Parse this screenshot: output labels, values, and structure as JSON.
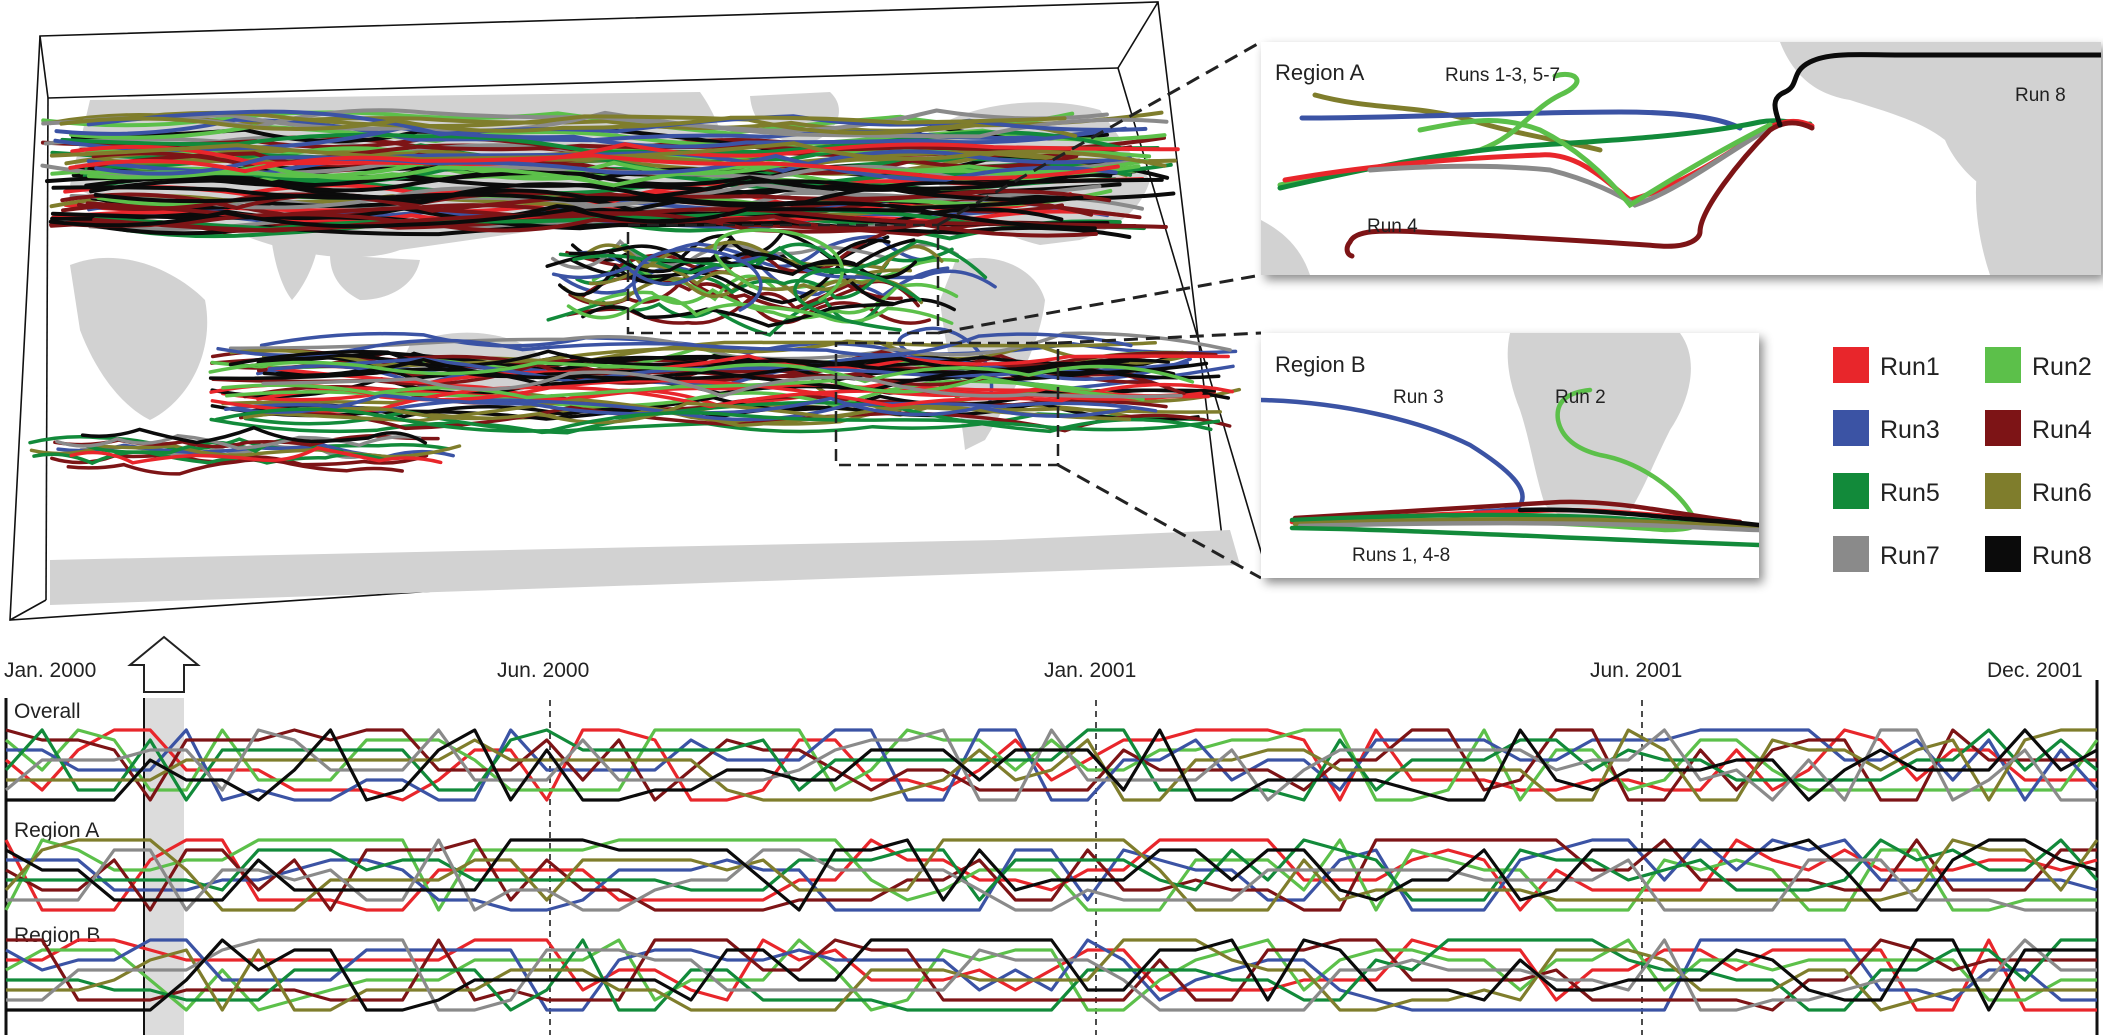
{
  "colors": {
    "Run1": "#e8262b",
    "Run2": "#5cc04a",
    "Run3": "#3b53a4",
    "Run4": "#7d1416",
    "Run5": "#128a3a",
    "Run6": "#7f7d2c",
    "Run7": "#8a8a8a",
    "Run8": "#0b0b0b",
    "land": "#d2d2d2",
    "highlight": "#dcdcdc"
  },
  "region_a": {
    "title": "Region A",
    "label_runs": "Runs 1-3, 5-7",
    "label_run4": "Run 4",
    "label_run8": "Run 8"
  },
  "region_b": {
    "title": "Region B",
    "label_run3": "Run 3",
    "label_run2": "Run 2",
    "label_runs": "Runs 1, 4-8"
  },
  "legend": [
    {
      "name": "Run1",
      "color": "#e8262b"
    },
    {
      "name": "Run2",
      "color": "#5cc04a"
    },
    {
      "name": "Run3",
      "color": "#3b53a4"
    },
    {
      "name": "Run4",
      "color": "#7d1416"
    },
    {
      "name": "Run5",
      "color": "#128a3a"
    },
    {
      "name": "Run6",
      "color": "#7f7d2c"
    },
    {
      "name": "Run7",
      "color": "#8a8a8a"
    },
    {
      "name": "Run8",
      "color": "#0b0b0b"
    }
  ],
  "timeline": {
    "dates": [
      "Jan. 2000",
      "Jun. 2000",
      "Jan. 2001",
      "Jun. 2001",
      "Dec. 2001"
    ],
    "rows": [
      "Overall",
      "Region A",
      "Region B"
    ]
  }
}
